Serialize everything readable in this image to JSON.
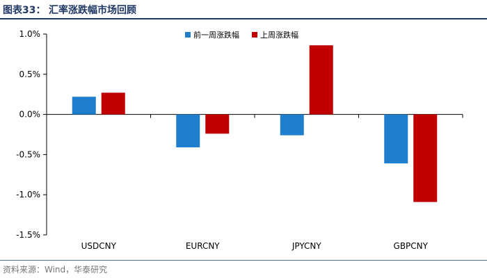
{
  "header": {
    "figure_label": "图表33：",
    "title": "汇率涨跌幅市场回顾"
  },
  "footer": {
    "source": "资料来源：Wind，华泰研究"
  },
  "colors": {
    "series_prev": "#1f7fcc",
    "series_last": "#c00000",
    "header": "#1f3864",
    "axis": "#000000"
  },
  "chart_data": {
    "type": "bar",
    "categories": [
      "USDCNY",
      "EURCNY",
      "JPYCNY",
      "GBPCNY"
    ],
    "series": [
      {
        "name": "前一周涨跌幅",
        "values": [
          0.22,
          -0.41,
          -0.26,
          -0.61
        ]
      },
      {
        "name": "上周涨跌幅",
        "values": [
          0.27,
          -0.24,
          0.86,
          -1.09
        ]
      }
    ],
    "yticks": [
      "1.0%",
      "0.5%",
      "0.0%",
      "-0.5%",
      "-1.0%",
      "-1.5%"
    ],
    "ylim": [
      -1.5,
      1.0
    ],
    "ytick_step": 0.5,
    "grid": false,
    "legend_position": "top-right",
    "title": "",
    "xlabel": "",
    "ylabel": ""
  }
}
